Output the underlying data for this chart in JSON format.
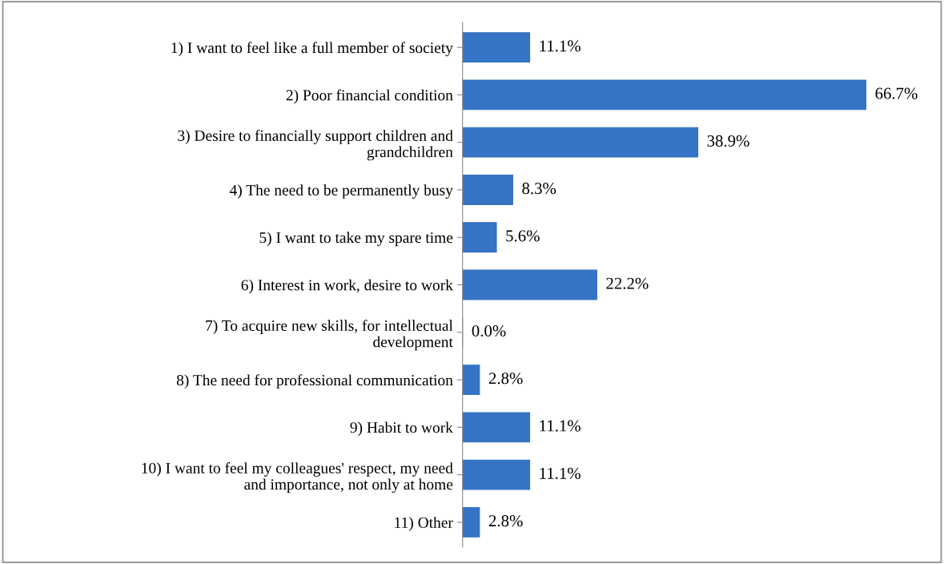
{
  "chart_data": {
    "type": "bar",
    "orientation": "horizontal",
    "categories": [
      "1) I want to feel like a full member of society",
      "2) Poor financial condition",
      "3) Desire to financially support children and\ngrandchildren",
      "4) The need to be permanently busy",
      "5) I want to take my spare time",
      "6) Interest in work, desire to work",
      "7) To acquire new skills, for intellectual\ndevelopment",
      "8) The need for professional communication",
      "9) Habit to work",
      "10) I want to feel my colleagues' respect, my need\nand importance, not only at home",
      "11) Other"
    ],
    "values": [
      11.1,
      66.7,
      38.9,
      8.3,
      5.6,
      22.2,
      0.0,
      2.8,
      11.1,
      11.1,
      2.8
    ],
    "value_labels": [
      "11.1%",
      "66.7%",
      "38.9%",
      "8.3%",
      "5.6%",
      "22.2%",
      "0.0%",
      "2.8%",
      "11.1%",
      "11.1%",
      "2.8%"
    ],
    "color": "#3573c4",
    "grid": false,
    "legend": false
  }
}
